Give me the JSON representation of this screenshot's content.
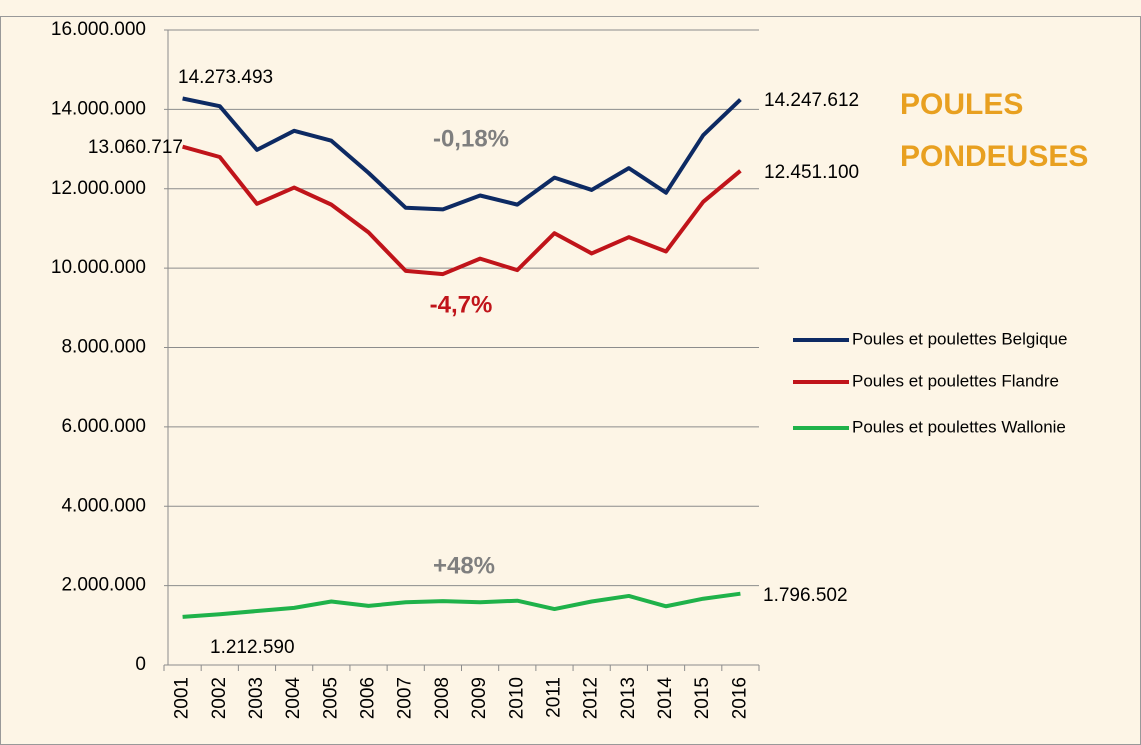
{
  "chart_data": {
    "type": "line",
    "categories": [
      "2001",
      "2002",
      "2003",
      "2004",
      "2005",
      "2006",
      "2007",
      "2008",
      "2009",
      "2010",
      "2011",
      "2012",
      "2013",
      "2014",
      "2015",
      "2016"
    ],
    "series": [
      {
        "name": "Poules et poulettes Belgique",
        "color": "#0d2a63",
        "values": [
          14273493,
          14080000,
          12980000,
          13460000,
          13210000,
          12400000,
          11520000,
          11480000,
          11830000,
          11600000,
          12280000,
          11970000,
          12520000,
          11900000,
          13350000,
          14247612
        ],
        "value_labels": [
          "14.273.493",
          null,
          null,
          null,
          null,
          null,
          null,
          null,
          null,
          null,
          null,
          null,
          null,
          null,
          null,
          "14.247.612"
        ]
      },
      {
        "name": "Poules et poulettes Flandre",
        "color": "#c0141a",
        "values": [
          13060717,
          12800000,
          11620000,
          12030000,
          11600000,
          10900000,
          9930000,
          9850000,
          10240000,
          9950000,
          10880000,
          10370000,
          10780000,
          10420000,
          11670000,
          12451100
        ],
        "value_labels": [
          "13.060.717",
          null,
          null,
          null,
          null,
          null,
          null,
          null,
          null,
          null,
          null,
          null,
          null,
          null,
          null,
          "12.451.100"
        ]
      },
      {
        "name": "Poules et poulettes Wallonie",
        "color": "#1fb24a",
        "values": [
          1212590,
          1280000,
          1360000,
          1440000,
          1600000,
          1490000,
          1580000,
          1610000,
          1580000,
          1620000,
          1410000,
          1600000,
          1740000,
          1480000,
          1670000,
          1796502
        ],
        "value_labels": [
          "1.212.590",
          null,
          null,
          null,
          null,
          null,
          null,
          null,
          null,
          null,
          null,
          null,
          null,
          null,
          null,
          "1.796.502"
        ]
      }
    ],
    "ylim": [
      0,
      16000000
    ],
    "yticks": [
      0,
      {
        "value": 2000000,
        "label": "2.000.000"
      },
      {
        "value": 4000000,
        "label": "4.000.000"
      },
      {
        "value": 6000000,
        "label": "6.000.000"
      },
      {
        "value": 8000000,
        "label": "8.000.000"
      },
      {
        "value": 10000000,
        "label": "10.000.000"
      },
      {
        "value": 12000000,
        "label": "12.000.000"
      },
      {
        "value": 14000000,
        "label": "14.000.000"
      },
      {
        "value": 16000000,
        "label": "16.000.000"
      }
    ],
    "grid": true,
    "legend": "right",
    "annotations": [
      {
        "text": "-0,18%",
        "color": "#7f7f7f"
      },
      {
        "text": "-4,7%",
        "color": "#c0141a"
      },
      {
        "text": "+48%",
        "color": "#7f7f7f"
      },
      {
        "text": "POULES",
        "color": "#e8a020"
      },
      {
        "text": "PONDEUSES",
        "color": "#e8a020"
      }
    ]
  }
}
